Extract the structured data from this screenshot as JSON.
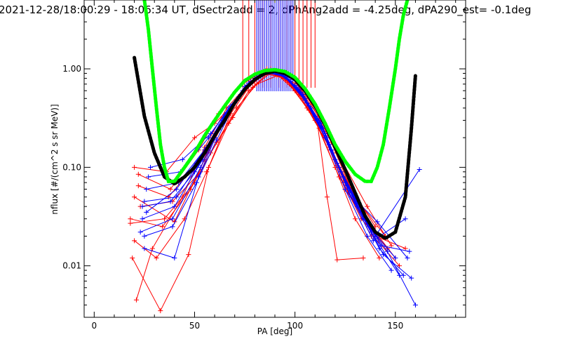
{
  "chart_data": {
    "type": "line",
    "title": "2021-12-28/18:00:29 - 18:06:34 UT, dSectr2add = 2, dPhAng2add = -4.25deg, dPA290_est=  -0.1deg",
    "xlabel": "PA [deg]",
    "ylabel": "nflux [#/(cm^2 s sr MeV)]",
    "xlim": [
      -5,
      185
    ],
    "ylim": [
      0.003,
      5
    ],
    "y_scale": "log",
    "x_ticks": [
      0,
      50,
      100,
      150
    ],
    "x_tick_labels": [
      "0",
      "50",
      "100",
      "150"
    ],
    "y_ticks": [
      0.01,
      0.1,
      1
    ],
    "y_tick_labels": [
      "0.01",
      "0.10",
      "1.00"
    ],
    "grid": false,
    "legend": "none",
    "colors": {
      "red_traces": "#ff0000",
      "blue_traces": "#0000ff",
      "black_fit": "#000000",
      "green_fit": "#00ff00"
    },
    "series": [
      {
        "color": "#000000",
        "style": "thick-dots",
        "x": [
          20,
          25,
          30,
          35,
          40,
          45,
          50,
          55,
          60,
          65,
          70,
          75,
          80,
          85,
          90,
          95,
          100,
          105,
          110,
          115,
          120,
          125,
          130,
          135,
          140,
          145,
          150,
          155,
          158,
          160
        ],
        "y": [
          1.3,
          0.33,
          0.14,
          0.08,
          0.068,
          0.08,
          0.1,
          0.14,
          0.21,
          0.3,
          0.45,
          0.62,
          0.78,
          0.9,
          0.95,
          0.9,
          0.78,
          0.6,
          0.42,
          0.27,
          0.16,
          0.095,
          0.055,
          0.032,
          0.022,
          0.019,
          0.022,
          0.05,
          0.25,
          0.85
        ]
      },
      {
        "color": "#00ff00",
        "style": "thick-dots",
        "x": [
          25,
          27,
          29,
          31,
          33,
          35,
          37,
          40,
          45,
          50,
          55,
          60,
          65,
          70,
          75,
          80,
          85,
          90,
          95,
          100,
          105,
          110,
          115,
          120,
          125,
          130,
          135,
          138,
          141,
          144,
          147,
          150,
          152,
          154,
          156
        ],
        "y": [
          5,
          2.5,
          1.0,
          0.4,
          0.17,
          0.1,
          0.072,
          0.072,
          0.1,
          0.14,
          0.21,
          0.3,
          0.42,
          0.58,
          0.76,
          0.88,
          0.96,
          0.98,
          0.94,
          0.82,
          0.63,
          0.44,
          0.28,
          0.17,
          0.115,
          0.085,
          0.072,
          0.072,
          0.1,
          0.17,
          0.4,
          1.0,
          2.0,
          3.5,
          5
        ]
      }
    ],
    "red_traces": [
      [
        [
          20,
          0.05
        ],
        [
          40,
          0.028
        ],
        [
          55,
          0.12
        ],
        [
          65,
          0.3
        ],
        [
          75,
          0.6
        ],
        [
          85,
          0.9
        ],
        [
          95,
          0.8
        ],
        [
          105,
          0.5
        ],
        [
          115,
          0.2
        ],
        [
          125,
          0.06
        ],
        [
          140,
          0.02
        ],
        [
          155,
          0.015
        ]
      ],
      [
        [
          18,
          0.027
        ],
        [
          35,
          0.03
        ],
        [
          50,
          0.07
        ],
        [
          60,
          0.22
        ],
        [
          72,
          0.5
        ],
        [
          82,
          0.85
        ],
        [
          92,
          0.9
        ],
        [
          102,
          0.55
        ],
        [
          112,
          0.25
        ],
        [
          122,
          0.08
        ],
        [
          135,
          0.03
        ],
        [
          150,
          0.012
        ]
      ],
      [
        [
          22,
          0.085
        ],
        [
          38,
          0.06
        ],
        [
          52,
          0.15
        ],
        [
          62,
          0.35
        ],
        [
          74,
          0.7
        ],
        [
          86,
          1.0
        ],
        [
          96,
          0.75
        ],
        [
          106,
          0.4
        ],
        [
          118,
          0.15
        ],
        [
          130,
          0.05
        ],
        [
          145,
          0.02
        ]
      ],
      [
        [
          19,
          0.012
        ],
        [
          33,
          0.0035
        ],
        [
          47,
          0.013
        ],
        [
          57,
          0.1
        ],
        [
          68,
          0.35
        ],
        [
          80,
          0.8
        ],
        [
          90,
          0.92
        ],
        [
          100,
          0.6
        ],
        [
          110,
          0.3
        ],
        [
          120,
          0.1
        ],
        [
          130,
          0.03
        ],
        [
          142,
          0.012
        ]
      ],
      [
        [
          21,
          0.0045
        ],
        [
          29,
          0.015
        ],
        [
          44,
          0.05
        ],
        [
          55,
          0.16
        ],
        [
          66,
          0.4
        ],
        [
          78,
          0.75
        ],
        [
          88,
          1.0
        ],
        [
          98,
          0.85
        ],
        [
          108,
          0.45
        ],
        [
          118,
          0.18
        ],
        [
          128,
          0.06
        ],
        [
          140,
          0.025
        ]
      ],
      [
        [
          20,
          0.1
        ],
        [
          36,
          0.09
        ],
        [
          50,
          0.2
        ],
        [
          60,
          0.28
        ],
        [
          70,
          0.45
        ],
        [
          83,
          0.9
        ],
        [
          93,
          0.9
        ],
        [
          103,
          0.6
        ],
        [
          113,
          0.3
        ],
        [
          123,
          0.12
        ],
        [
          136,
          0.04
        ],
        [
          148,
          0.016
        ]
      ],
      [
        [
          23,
          0.04
        ],
        [
          39,
          0.045
        ],
        [
          53,
          0.09
        ],
        [
          61,
          0.18
        ],
        [
          71,
          0.4
        ],
        [
          81,
          0.7
        ],
        [
          91,
          0.85
        ],
        [
          101,
          0.7
        ],
        [
          111,
          0.3
        ],
        [
          116,
          0.05
        ],
        [
          121,
          0.0115
        ],
        [
          134,
          0.012
        ]
      ],
      [
        [
          18,
          0.03
        ],
        [
          34,
          0.025
        ],
        [
          48,
          0.06
        ],
        [
          58,
          0.14
        ],
        [
          69,
          0.32
        ],
        [
          79,
          0.65
        ],
        [
          89,
          0.95
        ],
        [
          99,
          0.7
        ],
        [
          109,
          0.35
        ],
        [
          119,
          0.14
        ],
        [
          129,
          0.05
        ],
        [
          139,
          0.02
        ],
        [
          152,
          0.01
        ]
      ],
      [
        [
          22,
          0.065
        ],
        [
          37,
          0.05
        ],
        [
          51,
          0.11
        ],
        [
          63,
          0.26
        ],
        [
          73,
          0.55
        ],
        [
          84,
          0.88
        ],
        [
          94,
          0.85
        ],
        [
          104,
          0.5
        ],
        [
          114,
          0.22
        ],
        [
          124,
          0.07
        ],
        [
          133,
          0.03
        ],
        [
          146,
          0.015
        ]
      ],
      [
        [
          20,
          0.018
        ],
        [
          31,
          0.012
        ],
        [
          45,
          0.03
        ],
        [
          56,
          0.09
        ],
        [
          67,
          0.28
        ],
        [
          77,
          0.6
        ],
        [
          87,
          0.92
        ],
        [
          97,
          0.78
        ],
        [
          107,
          0.38
        ],
        [
          117,
          0.16
        ],
        [
          127,
          0.055
        ],
        [
          138,
          0.02
        ]
      ]
    ],
    "blue_traces": [
      [
        [
          25,
          0.045
        ],
        [
          41,
          0.05
        ],
        [
          55,
          0.14
        ],
        [
          65,
          0.32
        ],
        [
          75,
          0.62
        ],
        [
          85,
          0.92
        ],
        [
          95,
          0.85
        ],
        [
          105,
          0.5
        ],
        [
          115,
          0.22
        ],
        [
          125,
          0.07
        ],
        [
          137,
          0.025
        ],
        [
          150,
          0.012
        ]
      ],
      [
        [
          24,
          0.03
        ],
        [
          40,
          0.04
        ],
        [
          54,
          0.12
        ],
        [
          64,
          0.3
        ],
        [
          74,
          0.6
        ],
        [
          84,
          0.9
        ],
        [
          94,
          0.88
        ],
        [
          104,
          0.55
        ],
        [
          114,
          0.25
        ],
        [
          124,
          0.08
        ],
        [
          134,
          0.03
        ],
        [
          146,
          0.014
        ],
        [
          160,
          0.004
        ]
      ],
      [
        [
          26,
          0.06
        ],
        [
          42,
          0.07
        ],
        [
          56,
          0.16
        ],
        [
          66,
          0.36
        ],
        [
          76,
          0.68
        ],
        [
          86,
          0.95
        ],
        [
          96,
          0.82
        ],
        [
          106,
          0.45
        ],
        [
          116,
          0.2
        ],
        [
          126,
          0.065
        ],
        [
          138,
          0.022
        ],
        [
          152,
          0.008
        ]
      ],
      [
        [
          23,
          0.022
        ],
        [
          39,
          0.03
        ],
        [
          53,
          0.1
        ],
        [
          63,
          0.27
        ],
        [
          73,
          0.55
        ],
        [
          83,
          0.88
        ],
        [
          93,
          0.9
        ],
        [
          103,
          0.58
        ],
        [
          113,
          0.28
        ],
        [
          123,
          0.09
        ],
        [
          133,
          0.035
        ],
        [
          144,
          0.013
        ],
        [
          158,
          0.0075
        ]
      ],
      [
        [
          27,
          0.08
        ],
        [
          43,
          0.09
        ],
        [
          57,
          0.2
        ],
        [
          67,
          0.4
        ],
        [
          77,
          0.72
        ],
        [
          87,
          0.97
        ],
        [
          97,
          0.78
        ],
        [
          107,
          0.42
        ],
        [
          117,
          0.17
        ],
        [
          127,
          0.055
        ],
        [
          139,
          0.018
        ],
        [
          155,
          0.03
        ]
      ],
      [
        [
          25,
          0.015
        ],
        [
          40,
          0.012
        ],
        [
          52,
          0.08
        ],
        [
          62,
          0.24
        ],
        [
          72,
          0.52
        ],
        [
          82,
          0.85
        ],
        [
          92,
          0.92
        ],
        [
          102,
          0.62
        ],
        [
          112,
          0.3
        ],
        [
          122,
          0.1
        ],
        [
          132,
          0.04
        ],
        [
          143,
          0.016
        ],
        [
          157,
          0.014
        ]
      ],
      [
        [
          28,
          0.1
        ],
        [
          44,
          0.12
        ],
        [
          58,
          0.22
        ],
        [
          68,
          0.42
        ],
        [
          78,
          0.74
        ],
        [
          88,
          0.98
        ],
        [
          98,
          0.75
        ],
        [
          108,
          0.4
        ],
        [
          118,
          0.15
        ],
        [
          128,
          0.05
        ],
        [
          140,
          0.02
        ],
        [
          162,
          0.095
        ]
      ],
      [
        [
          24,
          0.04
        ],
        [
          38,
          0.045
        ],
        [
          50,
          0.09
        ],
        [
          60,
          0.2
        ],
        [
          70,
          0.45
        ],
        [
          80,
          0.8
        ],
        [
          90,
          0.95
        ],
        [
          100,
          0.68
        ],
        [
          110,
          0.33
        ],
        [
          120,
          0.12
        ],
        [
          131,
          0.04
        ],
        [
          142,
          0.015
        ],
        [
          154,
          0.008
        ]
      ],
      [
        [
          26,
          0.035
        ],
        [
          41,
          0.06
        ],
        [
          55,
          0.15
        ],
        [
          65,
          0.34
        ],
        [
          75,
          0.66
        ],
        [
          85,
          0.93
        ],
        [
          95,
          0.83
        ],
        [
          105,
          0.48
        ],
        [
          115,
          0.2
        ],
        [
          125,
          0.06
        ],
        [
          136,
          0.02
        ],
        [
          148,
          0.009
        ]
      ],
      [
        [
          25,
          0.02
        ],
        [
          39,
          0.025
        ],
        [
          51,
          0.07
        ],
        [
          61,
          0.19
        ],
        [
          71,
          0.48
        ],
        [
          81,
          0.82
        ],
        [
          91,
          0.96
        ],
        [
          101,
          0.65
        ],
        [
          111,
          0.3
        ],
        [
          121,
          0.11
        ],
        [
          131,
          0.045
        ],
        [
          141,
          0.028
        ],
        [
          156,
          0.012
        ]
      ]
    ],
    "red_ticks_x": [
      74,
      77,
      80,
      82,
      84,
      86,
      88,
      90,
      92,
      94,
      96,
      98,
      100,
      102,
      104,
      106,
      108,
      110
    ],
    "blue_ticks_x": [
      81,
      82,
      83,
      84,
      85,
      86,
      87,
      88,
      89,
      90,
      91,
      92,
      93,
      94,
      95,
      96,
      97,
      98,
      99
    ]
  }
}
